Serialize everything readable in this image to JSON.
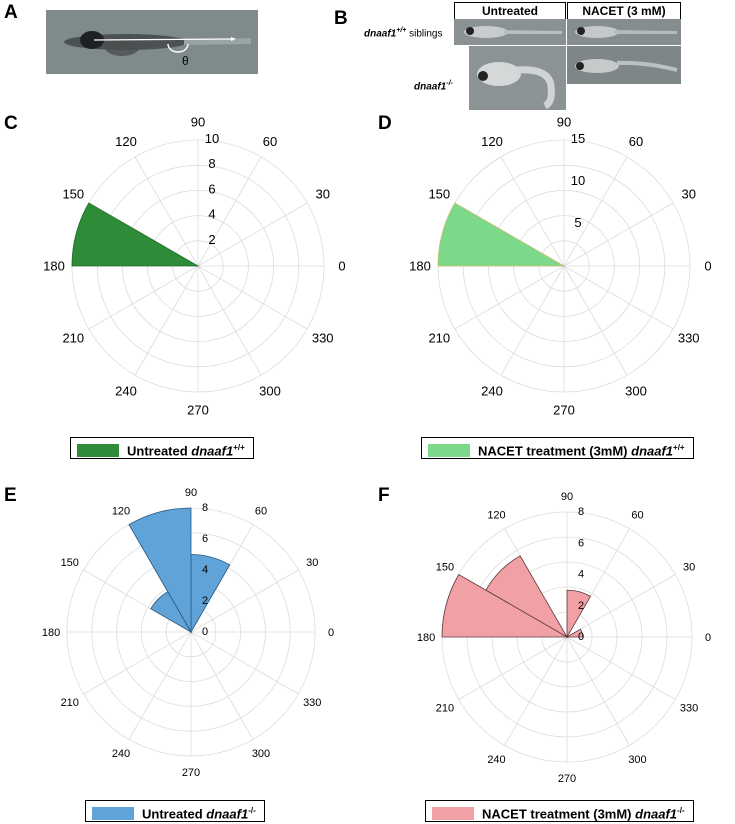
{
  "panels": {
    "A": {
      "letter": "A",
      "theta_label": "θ"
    },
    "B": {
      "letter": "B",
      "col_headers": [
        "Untreated",
        "NACET (3 mM)"
      ],
      "row1_gene": "dnaaf1",
      "row1_sup": "+/+",
      "row1_suffix": " siblings",
      "row2_gene": "dnaaf1",
      "row2_sup": "-/-"
    },
    "C": {
      "letter": "C"
    },
    "D": {
      "letter": "D"
    },
    "E": {
      "letter": "E"
    },
    "F": {
      "letter": "F"
    }
  },
  "legends": {
    "C": {
      "prefix": "Untreated ",
      "gene": "dnaaf1",
      "sup": "+/+"
    },
    "D": {
      "prefix": "NACET treatment (3mM) ",
      "gene": "dnaaf1",
      "sup": "+/+"
    },
    "E": {
      "prefix": "Untreated ",
      "gene": "dnaaf1",
      "sup": "-/-"
    },
    "F": {
      "prefix": "NACET treatment (3mM) ",
      "gene": "dnaaf1",
      "sup": "-/-"
    }
  },
  "chart_data": [
    {
      "panel": "C",
      "type": "polar_bar",
      "angle_labels": [
        "0",
        "30",
        "60",
        "90",
        "120",
        "150",
        "180",
        "210",
        "240",
        "270",
        "300",
        "330"
      ],
      "radial_ticks": [
        "2",
        "4",
        "6",
        "8",
        "10"
      ],
      "rmax": 10,
      "bars": [
        {
          "start_deg": 150,
          "end_deg": 180,
          "value": 10
        }
      ],
      "color": "#2e8b37",
      "edge": "#1f6e28",
      "legend": "Untreated dnaaf1+/+"
    },
    {
      "panel": "D",
      "type": "polar_bar",
      "angle_labels": [
        "0",
        "30",
        "60",
        "90",
        "120",
        "150",
        "180",
        "210",
        "240",
        "270",
        "300",
        "330"
      ],
      "radial_ticks": [
        "5",
        "10",
        "15"
      ],
      "rmax": 15,
      "bars": [
        {
          "start_deg": 150,
          "end_deg": 180,
          "value": 15
        }
      ],
      "color": "#7dd98a",
      "edge": "#c8c070",
      "legend": "NACET treatment (3mM) dnaaf1+/+"
    },
    {
      "panel": "E",
      "type": "polar_bar",
      "angle_labels": [
        "0",
        "30",
        "60",
        "90",
        "120",
        "150",
        "180",
        "210",
        "240",
        "270",
        "300",
        "330"
      ],
      "radial_ticks": [
        "0",
        "2",
        "4",
        "6",
        "8"
      ],
      "rmax": 8,
      "bars": [
        {
          "start_deg": 60,
          "end_deg": 90,
          "value": 5
        },
        {
          "start_deg": 90,
          "end_deg": 120,
          "value": 8
        },
        {
          "start_deg": 120,
          "end_deg": 150,
          "value": 3
        }
      ],
      "color": "#5fa3d9",
      "edge": "#2a5a80",
      "legend": "Untreated dnaaf1-/-"
    },
    {
      "panel": "F",
      "type": "polar_bar",
      "angle_labels": [
        "0",
        "30",
        "60",
        "90",
        "120",
        "150",
        "180",
        "210",
        "240",
        "270",
        "300",
        "330"
      ],
      "radial_ticks": [
        "0",
        "2",
        "4",
        "6",
        "8"
      ],
      "rmax": 8,
      "bars": [
        {
          "start_deg": 0,
          "end_deg": 30,
          "value": 1
        },
        {
          "start_deg": 60,
          "end_deg": 90,
          "value": 3
        },
        {
          "start_deg": 120,
          "end_deg": 150,
          "value": 6
        },
        {
          "start_deg": 150,
          "end_deg": 180,
          "value": 8
        }
      ],
      "color": "#f1a0a5",
      "edge": "#5a3a3c",
      "legend": "NACET treatment (3mM) dnaaf1-/-"
    }
  ]
}
